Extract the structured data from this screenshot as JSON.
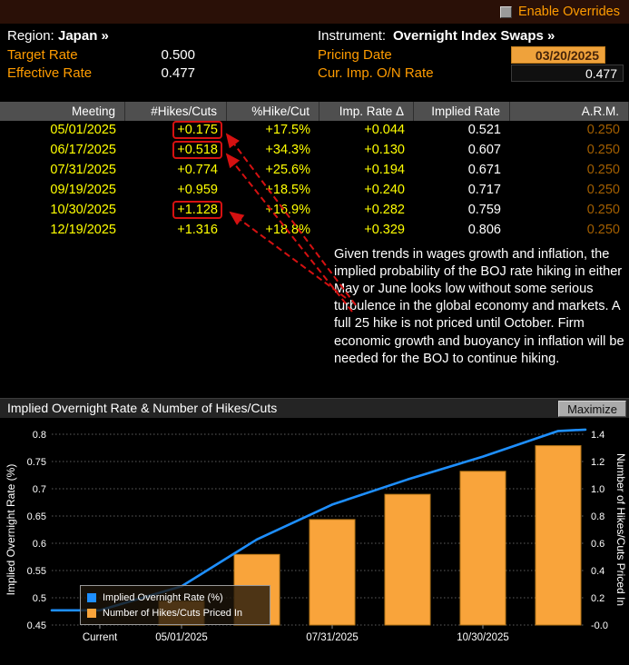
{
  "topbar": {
    "enable_overrides_label": "Enable Overrides"
  },
  "header": {
    "region_label": "Region:",
    "region_value": "Japan »",
    "instrument_label": "Instrument:",
    "instrument_value": "Overnight Index Swaps »",
    "target_rate_label": "Target Rate",
    "target_rate_value": "0.500",
    "effective_rate_label": "Effective Rate",
    "effective_rate_value": "0.477",
    "pricing_date_label": "Pricing Date",
    "pricing_date_value": "03/20/2025",
    "cur_imp_label": "Cur. Imp. O/N Rate",
    "cur_imp_value": "0.477"
  },
  "table": {
    "columns": [
      "Meeting",
      "#Hikes/Cuts",
      "%Hike/Cut",
      "Imp. Rate Δ",
      "Implied Rate",
      "A.R.M."
    ],
    "rows": [
      {
        "meeting": "05/01/2025",
        "hikes_cuts": "+0.175",
        "pct_hike_cut": "+17.5%",
        "imp_rate_delta": "+0.044",
        "implied_rate": "0.521",
        "arm": "0.250",
        "highlighted": true
      },
      {
        "meeting": "06/17/2025",
        "hikes_cuts": "+0.518",
        "pct_hike_cut": "+34.3%",
        "imp_rate_delta": "+0.130",
        "implied_rate": "0.607",
        "arm": "0.250",
        "highlighted": true
      },
      {
        "meeting": "07/31/2025",
        "hikes_cuts": "+0.774",
        "pct_hike_cut": "+25.6%",
        "imp_rate_delta": "+0.194",
        "implied_rate": "0.671",
        "arm": "0.250",
        "highlighted": false
      },
      {
        "meeting": "09/19/2025",
        "hikes_cuts": "+0.959",
        "pct_hike_cut": "+18.5%",
        "imp_rate_delta": "+0.240",
        "implied_rate": "0.717",
        "arm": "0.250",
        "highlighted": false
      },
      {
        "meeting": "10/30/2025",
        "hikes_cuts": "+1.128",
        "pct_hike_cut": "+16.9%",
        "imp_rate_delta": "+0.282",
        "implied_rate": "0.759",
        "arm": "0.250",
        "highlighted": true
      },
      {
        "meeting": "12/19/2025",
        "hikes_cuts": "+1.316",
        "pct_hike_cut": "+18.8%",
        "imp_rate_delta": "+0.329",
        "implied_rate": "0.806",
        "arm": "0.250",
        "highlighted": false
      }
    ]
  },
  "annotation": {
    "text": "Given trends in wages growth and inflation, the implied probability of the BOJ rate hiking in either May or June looks low without some serious turbulence in the global economy and markets. A full 25 hike is not priced until October. Firm economic growth and buoyancy in inflation will be needed for the BOJ to continue hiking."
  },
  "chart": {
    "title": "Implied Overnight Rate & Number of Hikes/Cuts",
    "maximize_label": "Maximize"
  },
  "chart_data": {
    "type": "bar",
    "subtype": "bar+line dual-axis",
    "categories": [
      "Current",
      "05/01/2025",
      "06/17/2025",
      "07/31/2025",
      "09/19/2025",
      "10/30/2025",
      "12/19/2025"
    ],
    "series": [
      {
        "name": "Implied Overnight Rate (%)",
        "type": "line",
        "axis": "left",
        "color": "#1e8fff",
        "values": [
          0.477,
          0.521,
          0.607,
          0.671,
          0.717,
          0.759,
          0.806
        ]
      },
      {
        "name": "Number of Hikes/Cuts Priced In",
        "type": "bar",
        "axis": "right",
        "color": "#f9a43b",
        "values": [
          null,
          0.175,
          0.518,
          0.774,
          0.959,
          1.128,
          1.316
        ]
      }
    ],
    "left_axis": {
      "label": "Implied Overnight Rate (%)",
      "min": 0.45,
      "max": 0.8,
      "tick_step": 0.05
    },
    "right_axis": {
      "label": "Number of Hikes/Cuts Priced In",
      "min": 0.0,
      "max": 1.4,
      "tick_step": 0.2
    },
    "x_tick_labels": [
      "Current",
      "05/01/2025",
      "07/31/2025",
      "10/30/2025"
    ],
    "grid": "dotted-horizontal",
    "legend_position": "bottom-left"
  },
  "colors": {
    "amber_label": "#ff9c00",
    "value_yellow": "#ffff00",
    "arm_dim_orange": "#a35f00",
    "highlight_red": "#d51111",
    "input_amber_bg": "#efa23b",
    "table_header_gray": "#4f4f4f",
    "line_blue": "#1e8fff",
    "bar_orange": "#f9a43b"
  }
}
